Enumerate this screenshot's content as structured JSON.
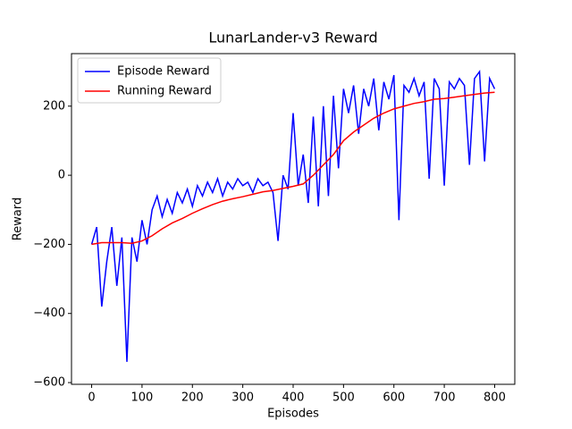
{
  "chart_data": {
    "type": "line",
    "title": "LunarLander-v3 Reward",
    "xlabel": "Episodes",
    "ylabel": "Reward",
    "xlim": [
      -40,
      840
    ],
    "ylim": [
      -605,
      352
    ],
    "xticks": [
      0,
      100,
      200,
      300,
      400,
      500,
      600,
      700,
      800
    ],
    "yticks": [
      {
        "value": -600,
        "label": "−600"
      },
      {
        "value": -400,
        "label": "−400"
      },
      {
        "value": -200,
        "label": "−200"
      },
      0,
      200
    ],
    "grid": false,
    "legend": "upper left",
    "series": [
      {
        "name": "Episode Reward",
        "color": "#0000ff",
        "x": [
          0,
          10,
          20,
          30,
          40,
          50,
          60,
          70,
          80,
          90,
          100,
          110,
          120,
          130,
          140,
          150,
          160,
          170,
          180,
          190,
          200,
          210,
          220,
          230,
          240,
          250,
          260,
          270,
          280,
          290,
          300,
          310,
          320,
          330,
          340,
          350,
          360,
          370,
          380,
          390,
          400,
          410,
          420,
          430,
          440,
          450,
          460,
          470,
          480,
          490,
          500,
          510,
          520,
          530,
          540,
          550,
          560,
          570,
          580,
          590,
          600,
          610,
          620,
          630,
          640,
          650,
          660,
          670,
          680,
          690,
          700,
          710,
          720,
          730,
          740,
          750,
          760,
          770,
          780,
          790,
          800
        ],
        "values": [
          -200,
          -150,
          -380,
          -250,
          -150,
          -320,
          -180,
          -540,
          -180,
          -250,
          -130,
          -200,
          -100,
          -60,
          -120,
          -70,
          -110,
          -50,
          -80,
          -40,
          -90,
          -30,
          -60,
          -20,
          -50,
          -10,
          -60,
          -20,
          -40,
          -10,
          -30,
          -20,
          -50,
          -10,
          -30,
          -20,
          -50,
          -190,
          0,
          -40,
          180,
          -30,
          60,
          -80,
          170,
          -90,
          200,
          -60,
          230,
          20,
          250,
          180,
          260,
          120,
          250,
          200,
          280,
          130,
          270,
          220,
          290,
          -130,
          260,
          240,
          280,
          230,
          270,
          -10,
          280,
          250,
          -30,
          270,
          250,
          280,
          260,
          30,
          280,
          300,
          40,
          280,
          250
        ]
      },
      {
        "name": "Running Reward",
        "color": "#ff0000",
        "x": [
          0,
          20,
          40,
          60,
          80,
          100,
          120,
          140,
          160,
          180,
          200,
          220,
          240,
          260,
          280,
          300,
          320,
          340,
          360,
          380,
          400,
          420,
          440,
          460,
          480,
          500,
          520,
          540,
          560,
          580,
          600,
          620,
          640,
          660,
          680,
          700,
          720,
          740,
          760,
          780,
          800
        ],
        "values": [
          -200,
          -195,
          -195,
          -195,
          -197,
          -190,
          -175,
          -155,
          -138,
          -125,
          -110,
          -97,
          -85,
          -75,
          -68,
          -62,
          -55,
          -48,
          -44,
          -38,
          -32,
          -25,
          0,
          30,
          60,
          100,
          125,
          145,
          165,
          180,
          192,
          200,
          208,
          213,
          220,
          222,
          226,
          230,
          234,
          238,
          240
        ]
      }
    ]
  }
}
